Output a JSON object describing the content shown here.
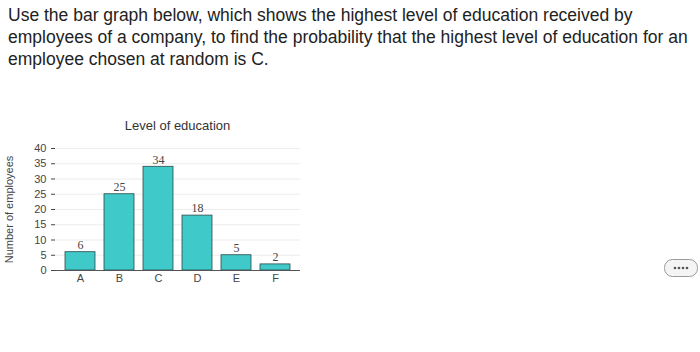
{
  "question": "Use the bar graph below, which shows the highest level of education received by employees of a company, to find the probability that the highest level of education for an employee chosen at random is C.",
  "chart_data": {
    "type": "bar",
    "title": "Level of education",
    "y_label": "Number of employees",
    "categories": [
      "A",
      "B",
      "C",
      "D",
      "E",
      "F"
    ],
    "values": [
      6,
      25,
      34,
      18,
      5,
      2
    ],
    "color": "#40c9c9",
    "ylim": [
      0,
      40
    ],
    "yticks": [
      0,
      5,
      10,
      15,
      20,
      25,
      30,
      35,
      40
    ],
    "grid": true,
    "data_labels": true
  }
}
